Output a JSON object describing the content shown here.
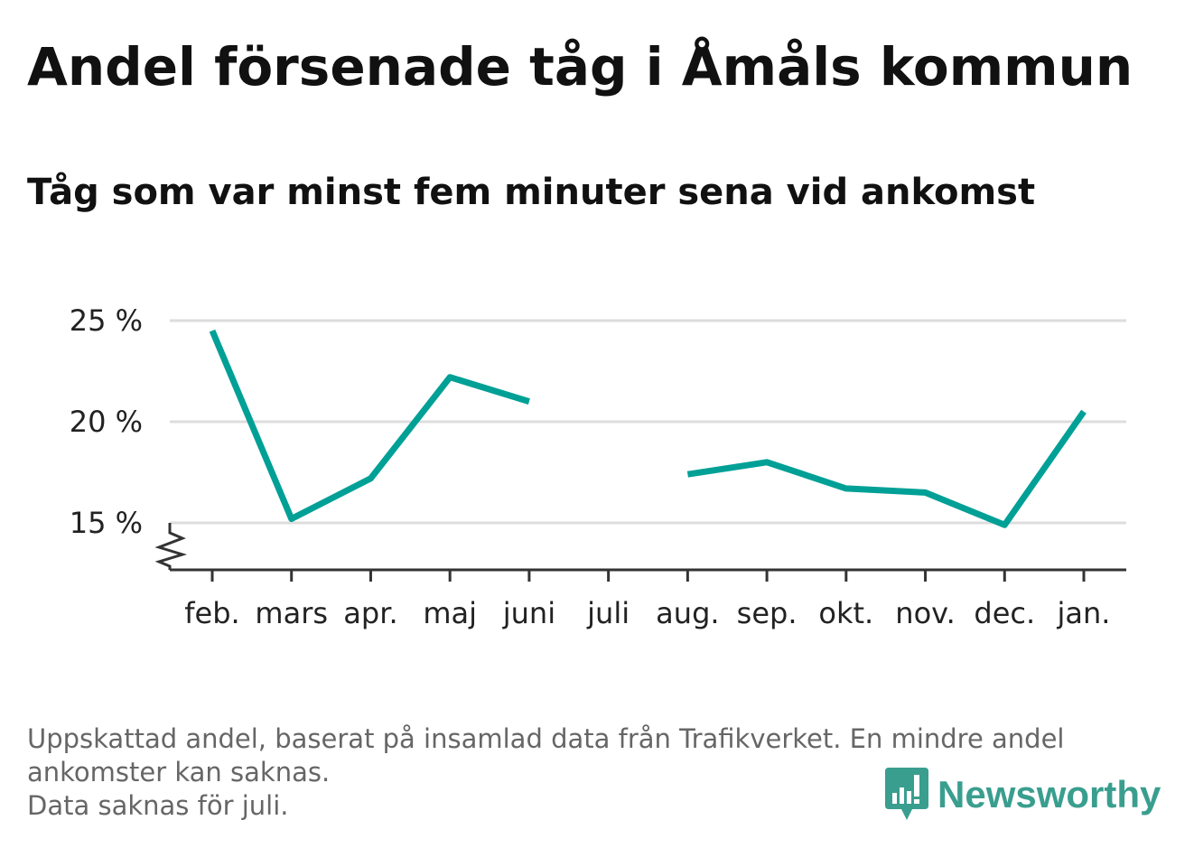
{
  "title": "Andel försenade tåg i Åmåls kommun",
  "subtitle": "Tåg som var minst fem minuter sena vid ankomst",
  "footer": {
    "line1": "Uppskattad andel, baserat på insamlad data från Trafikverket. En mindre andel",
    "line2": "ankomster kan saknas.",
    "line3": "Data saknas för juli."
  },
  "logo": {
    "text": "Newsworthy",
    "color": "#3a9e8f"
  },
  "chart_data": {
    "type": "line",
    "categories": [
      "feb.",
      "mars",
      "apr.",
      "maj",
      "juni",
      "juli",
      "aug.",
      "sep.",
      "okt.",
      "nov.",
      "dec.",
      "jan."
    ],
    "series": [
      {
        "values": [
          24.5,
          15.2,
          17.2,
          22.2,
          21.0,
          null,
          17.4,
          18.0,
          16.7,
          16.5,
          14.9,
          20.5
        ]
      }
    ],
    "yticks": [
      15,
      20,
      25
    ],
    "ytick_labels": [
      "15 %",
      "20 %",
      "25 %"
    ],
    "ylim": [
      12.6,
      25
    ],
    "y_axis_break": true,
    "grid": true,
    "line_color": "#00a096",
    "xlabel": "",
    "ylabel": ""
  }
}
